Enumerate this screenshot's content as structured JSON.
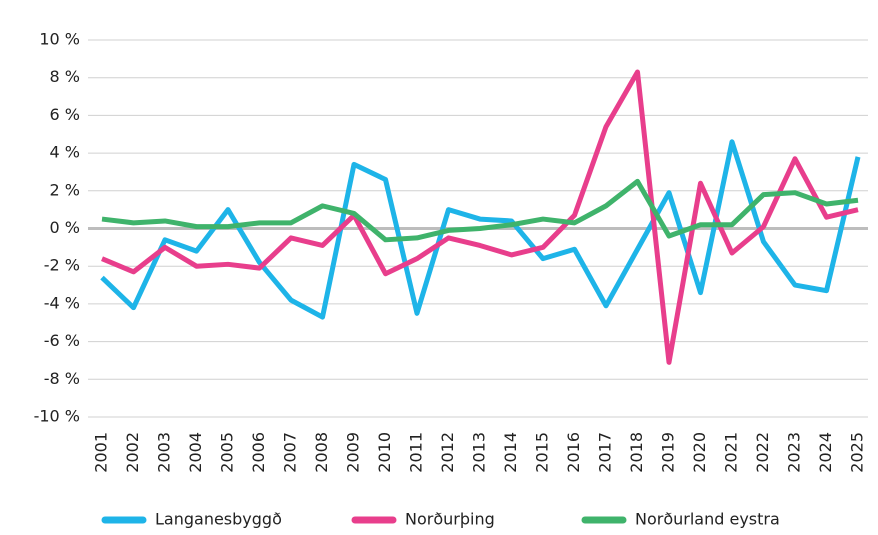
{
  "chart_data": {
    "type": "line",
    "x": [
      "2001",
      "2002",
      "2003",
      "2004",
      "2005",
      "2006",
      "2007",
      "2008",
      "2009",
      "2010",
      "2011",
      "2012",
      "2013",
      "2014",
      "2015",
      "2016",
      "2017",
      "2018",
      "2019",
      "2020",
      "2021",
      "2022",
      "2023",
      "2024",
      "2025"
    ],
    "series": [
      {
        "name": "Langanesbyggð",
        "color": "#1eb4e8",
        "values": [
          -2.6,
          -4.2,
          -0.6,
          -1.2,
          1.0,
          -1.8,
          -3.8,
          -4.7,
          3.4,
          2.6,
          -4.5,
          1.0,
          0.5,
          0.4,
          -1.6,
          -1.1,
          -4.1,
          -1.1,
          1.9,
          -3.4,
          4.6,
          -0.7,
          -3.0,
          -3.3,
          3.8
        ]
      },
      {
        "name": "Norðurþing",
        "color": "#e83e8c",
        "values": [
          -1.6,
          -2.3,
          -1.0,
          -2.0,
          -1.9,
          -2.1,
          -0.5,
          -0.9,
          0.7,
          -2.4,
          -1.6,
          -0.5,
          -0.9,
          -1.4,
          -1.0,
          0.7,
          5.4,
          8.3,
          -7.1,
          2.4,
          -1.3,
          0.1,
          3.7,
          0.6,
          1.0
        ]
      },
      {
        "name": "Norðurland eystra",
        "color": "#3fb36b",
        "values": [
          0.5,
          0.3,
          0.4,
          0.1,
          0.1,
          0.3,
          0.3,
          1.2,
          0.8,
          -0.6,
          -0.5,
          -0.1,
          0.0,
          0.2,
          0.5,
          0.3,
          1.2,
          2.5,
          -0.4,
          0.2,
          0.2,
          1.8,
          1.9,
          1.3,
          1.5
        ]
      }
    ],
    "ylim": [
      -10,
      10
    ],
    "yticks": [
      {
        "value": -10,
        "label": "-10 %"
      },
      {
        "value": -8,
        "label": "-8 %"
      },
      {
        "value": -6,
        "label": "-6 %"
      },
      {
        "value": -4,
        "label": "-4 %"
      },
      {
        "value": -2,
        "label": "-2 %"
      },
      {
        "value": 0,
        "label": "0 %"
      },
      {
        "value": 2,
        "label": "2 %"
      },
      {
        "value": 4,
        "label": "4 %"
      },
      {
        "value": 6,
        "label": "6 %"
      },
      {
        "value": 8,
        "label": "8 %"
      },
      {
        "value": 10,
        "label": "10 %"
      }
    ],
    "grid": true,
    "legend": "bottom"
  }
}
